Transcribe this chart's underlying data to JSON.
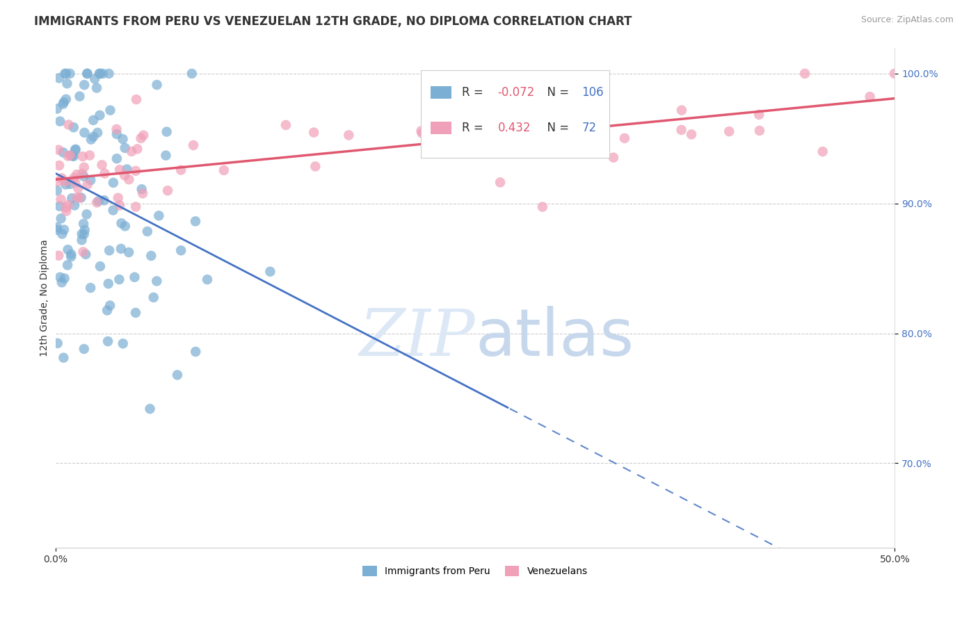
{
  "title": "IMMIGRANTS FROM PERU VS VENEZUELAN 12TH GRADE, NO DIPLOMA CORRELATION CHART",
  "source": "Source: ZipAtlas.com",
  "xlabel_peru": "Immigrants from Peru",
  "xlabel_venezuelan": "Venezuelans",
  "ylabel": "12th Grade, No Diploma",
  "xlim": [
    0.0,
    0.5
  ],
  "ylim": [
    0.635,
    1.02
  ],
  "yticks": [
    0.7,
    0.8,
    0.9,
    1.0
  ],
  "ytick_labels": [
    "70.0%",
    "80.0%",
    "90.0%",
    "100.0%"
  ],
  "xticks": [
    0.0,
    0.5
  ],
  "xtick_labels": [
    "0.0%",
    "50.0%"
  ],
  "R_peru": -0.072,
  "N_peru": 106,
  "R_venezuelan": 0.432,
  "N_venezuelan": 72,
  "color_peru": "#7bafd4",
  "color_venezuelan": "#f0a0b8",
  "trendline_peru_color": "#4472c4",
  "trendline_venezuelan_color": "#e05870",
  "background_color": "#ffffff",
  "title_fontsize": 12,
  "label_fontsize": 10,
  "tick_fontsize": 10,
  "legend_fontsize": 12,
  "source_fontsize": 9
}
